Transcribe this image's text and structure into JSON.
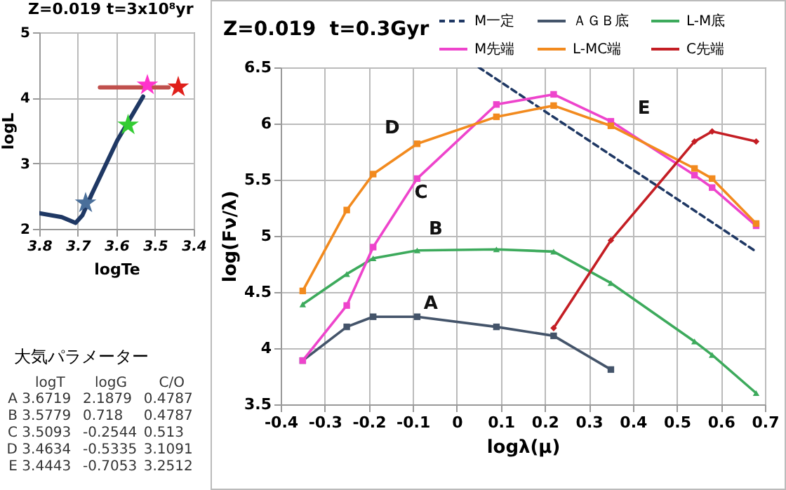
{
  "chart_data": [
    {
      "type": "line",
      "title": "Z=0.019 t=3x10⁸yr",
      "xlabel": "logTe",
      "ylabel": "logL",
      "xlim": [
        3.8,
        3.4
      ],
      "xticks": [
        3.8,
        3.7,
        3.6,
        3.5,
        3.4
      ],
      "ylim": [
        2,
        5
      ],
      "yticks": [
        2,
        3,
        4,
        5
      ],
      "grid": true,
      "series": [
        {
          "type": "line",
          "marker": "none",
          "color": "#1f3864",
          "x": [
            3.8,
            3.742,
            3.706,
            3.688,
            3.664,
            3.598,
            3.549,
            3.531
          ],
          "values": [
            2.24,
            2.18,
            2.09,
            2.21,
            2.53,
            3.35,
            3.84,
            4.02
          ]
        },
        {
          "type": "line",
          "marker": "none",
          "color": "#c0504d",
          "x": [
            3.643,
            3.489,
            3.465
          ],
          "values": [
            4.16,
            4.16,
            4.16
          ]
        },
        {
          "type": "scatter",
          "marker": "star",
          "x": [
            3.68,
            3.57,
            3.52,
            3.44
          ],
          "values": [
            2.41,
            3.6,
            4.21,
            4.18
          ],
          "colors": [
            "#4a6f9a",
            "#33cc33",
            "#ff33cc",
            "#e0201b"
          ]
        }
      ]
    },
    {
      "type": "line",
      "title": "Z=0.019  t=0.3Gyr",
      "xlabel": "logλ(μ)",
      "ylabel": "log(Fν/λ)",
      "xlim": [
        -0.4,
        0.7
      ],
      "xticks": [
        -0.4,
        -0.3,
        -0.2,
        -0.1,
        0,
        0.1,
        0.2,
        0.3,
        0.4,
        0.5,
        0.6,
        0.7
      ],
      "ylim": [
        3.5,
        6.5
      ],
      "yticks": [
        3.5,
        4,
        4.5,
        5,
        5.5,
        6,
        6.5
      ],
      "grid": true,
      "legend": "top right",
      "x": [
        -0.35,
        -0.25,
        -0.19,
        -0.09,
        0.09,
        0.22,
        0.35,
        0.54,
        0.58,
        0.68
      ],
      "series": [
        {
          "name": "M一定",
          "type": "line",
          "marker": "none",
          "line_style": "dashed",
          "color": "#1f3864",
          "x": [
            0.05,
            0.68
          ],
          "values": [
            6.5,
            4.86
          ]
        },
        {
          "name": "ＡＧＢ底",
          "type": "line",
          "marker": "square",
          "color": "#44546a",
          "values": [
            3.89,
            4.19,
            4.28,
            4.28,
            4.19,
            4.11,
            3.81,
            null,
            null,
            null
          ]
        },
        {
          "name": "L-M底",
          "type": "line",
          "marker": "triangle",
          "color": "#3daa5c",
          "values": [
            4.39,
            4.66,
            4.8,
            4.87,
            4.88,
            4.86,
            4.58,
            4.06,
            3.94,
            3.6
          ]
        },
        {
          "name": "M先端",
          "type": "line",
          "marker": "square",
          "color": "#ee44cc",
          "values": [
            3.89,
            4.38,
            4.9,
            5.51,
            6.17,
            6.26,
            6.02,
            5.54,
            5.43,
            5.09
          ]
        },
        {
          "name": "L-MC端",
          "type": "line",
          "marker": "square",
          "color": "#f28a1e",
          "values": [
            4.51,
            5.23,
            5.55,
            5.82,
            6.06,
            6.16,
            5.98,
            5.6,
            5.51,
            5.11
          ]
        },
        {
          "name": "C先端",
          "type": "line",
          "marker": "diamond",
          "color": "#c41e24",
          "values": [
            null,
            null,
            null,
            null,
            null,
            4.18,
            4.96,
            5.84,
            5.93,
            5.84
          ]
        }
      ],
      "annotations": [
        "A",
        "B",
        "C",
        "D",
        "E"
      ]
    },
    {
      "type": "heatmap",
      "title": "大気パラメーター",
      "data_labels": true,
      "categories": [
        "logT",
        "logG",
        "C/O"
      ],
      "y_categories": [
        "A",
        "B",
        "C",
        "D",
        "E"
      ],
      "cells": [
        [
          3.6719,
          2.1879,
          0.4787
        ],
        [
          3.5779,
          0.718,
          0.4787
        ],
        [
          3.5093,
          -0.2544,
          0.513
        ],
        [
          3.4634,
          -0.5335,
          3.1091
        ],
        [
          3.4443,
          -0.7053,
          3.2512
        ]
      ]
    }
  ]
}
